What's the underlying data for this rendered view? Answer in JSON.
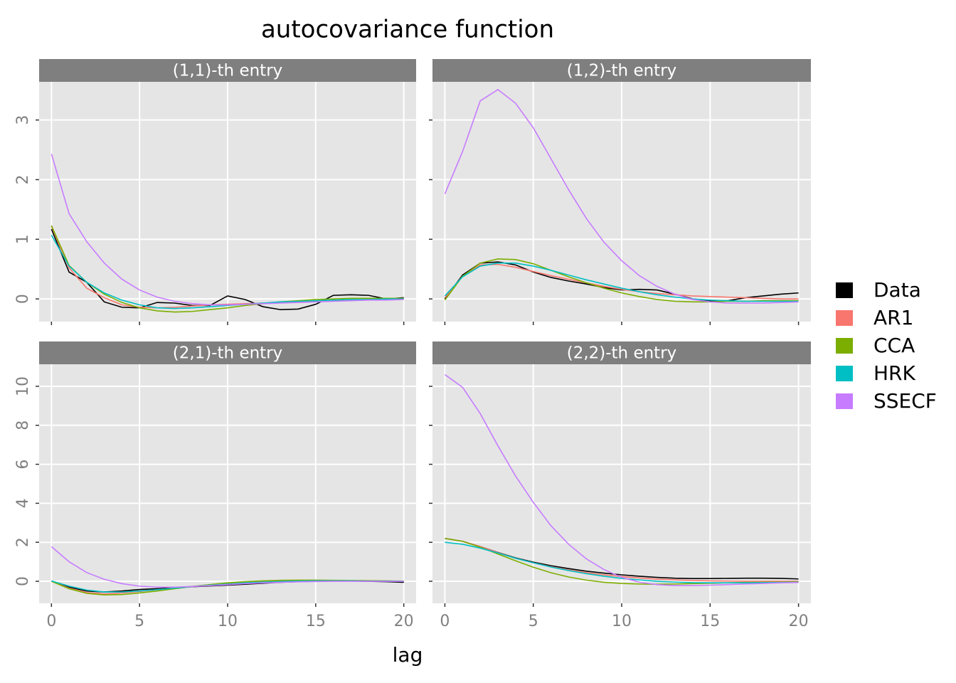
{
  "title": "autocovariance function",
  "x_label": "lag",
  "legend_position": "right",
  "grid": true,
  "chart_data": [
    {
      "type": "line",
      "title": "(1,1)-th entry",
      "x": [
        0,
        1,
        2,
        3,
        4,
        5,
        6,
        7,
        8,
        9,
        10,
        11,
        12,
        13,
        14,
        15,
        16,
        17,
        18,
        19,
        20
      ],
      "xlim": [
        -0.7,
        20.7
      ],
      "ylim": [
        -0.38,
        3.64
      ],
      "yticks": [
        0,
        1,
        2,
        3
      ],
      "series": [
        {
          "name": "Data",
          "color": "#000000",
          "values": [
            1.17,
            0.45,
            0.28,
            -0.05,
            -0.14,
            -0.15,
            -0.06,
            -0.07,
            -0.11,
            -0.11,
            0.05,
            -0.01,
            -0.13,
            -0.18,
            -0.17,
            -0.09,
            0.06,
            0.07,
            0.06,
            0.0,
            0.02
          ]
        },
        {
          "name": "AR1",
          "color": "#F8766D",
          "values": [
            1.22,
            0.52,
            0.18,
            0.02,
            -0.1,
            -0.14,
            -0.15,
            -0.14,
            -0.12,
            -0.1,
            -0.09,
            -0.08,
            -0.07,
            -0.06,
            -0.05,
            -0.04,
            -0.03,
            -0.02,
            -0.01,
            0.0,
            0.0
          ]
        },
        {
          "name": "CCA",
          "color": "#7CAE00",
          "values": [
            1.23,
            0.56,
            0.28,
            0.08,
            -0.06,
            -0.15,
            -0.2,
            -0.22,
            -0.21,
            -0.18,
            -0.15,
            -0.11,
            -0.08,
            -0.05,
            -0.03,
            -0.01,
            0.0,
            0.01,
            0.01,
            0.01,
            0.01
          ]
        },
        {
          "name": "HRK",
          "color": "#00BFC4",
          "values": [
            1.07,
            0.55,
            0.28,
            0.1,
            -0.02,
            -0.1,
            -0.15,
            -0.16,
            -0.15,
            -0.13,
            -0.11,
            -0.09,
            -0.07,
            -0.05,
            -0.04,
            -0.03,
            -0.02,
            -0.01,
            -0.01,
            0.0,
            0.0
          ]
        },
        {
          "name": "SSECF",
          "color": "#C77CFF",
          "values": [
            2.43,
            1.43,
            0.96,
            0.6,
            0.33,
            0.15,
            0.03,
            -0.04,
            -0.08,
            -0.1,
            -0.1,
            -0.09,
            -0.08,
            -0.07,
            -0.06,
            -0.05,
            -0.04,
            -0.03,
            -0.02,
            -0.02,
            -0.01
          ]
        }
      ]
    },
    {
      "type": "line",
      "title": "(1,2)-th entry",
      "x": [
        0,
        1,
        2,
        3,
        4,
        5,
        6,
        7,
        8,
        9,
        10,
        11,
        12,
        13,
        14,
        15,
        16,
        17,
        18,
        19,
        20
      ],
      "xlim": [
        -0.7,
        20.7
      ],
      "ylim": [
        -0.38,
        3.64
      ],
      "series": [
        {
          "name": "Data",
          "color": "#000000",
          "values": [
            0.0,
            0.4,
            0.6,
            0.62,
            0.57,
            0.45,
            0.36,
            0.3,
            0.25,
            0.19,
            0.15,
            0.16,
            0.15,
            0.08,
            0.0,
            -0.03,
            -0.03,
            0.02,
            0.05,
            0.08,
            0.1
          ]
        },
        {
          "name": "AR1",
          "color": "#F8766D",
          "values": [
            0.02,
            0.38,
            0.57,
            0.58,
            0.53,
            0.46,
            0.39,
            0.33,
            0.27,
            0.21,
            0.16,
            0.12,
            0.09,
            0.07,
            0.05,
            0.04,
            0.03,
            0.02,
            0.01,
            0.0,
            0.0
          ]
        },
        {
          "name": "CCA",
          "color": "#7CAE00",
          "values": [
            -0.02,
            0.38,
            0.6,
            0.67,
            0.66,
            0.59,
            0.48,
            0.37,
            0.27,
            0.18,
            0.1,
            0.04,
            -0.01,
            -0.04,
            -0.05,
            -0.05,
            -0.04,
            -0.04,
            -0.03,
            -0.03,
            -0.03
          ]
        },
        {
          "name": "HRK",
          "color": "#00BFC4",
          "values": [
            0.05,
            0.37,
            0.55,
            0.6,
            0.6,
            0.55,
            0.48,
            0.4,
            0.32,
            0.25,
            0.18,
            0.12,
            0.07,
            0.03,
            0.0,
            -0.02,
            -0.03,
            -0.04,
            -0.04,
            -0.04,
            -0.04
          ]
        },
        {
          "name": "SSECF",
          "color": "#C77CFF",
          "values": [
            1.76,
            2.47,
            3.32,
            3.51,
            3.28,
            2.87,
            2.35,
            1.83,
            1.35,
            0.95,
            0.64,
            0.39,
            0.21,
            0.08,
            -0.01,
            -0.05,
            -0.07,
            -0.07,
            -0.07,
            -0.06,
            -0.05
          ]
        }
      ]
    },
    {
      "type": "line",
      "title": "(2,1)-th entry",
      "x": [
        0,
        1,
        2,
        3,
        4,
        5,
        6,
        7,
        8,
        9,
        10,
        11,
        12,
        13,
        14,
        15,
        16,
        17,
        18,
        19,
        20
      ],
      "xlim": [
        -0.7,
        20.7
      ],
      "ylim": [
        -1.13,
        11.13
      ],
      "xticks": [
        0,
        5,
        10,
        15,
        20
      ],
      "yticks": [
        0,
        2,
        4,
        6,
        8,
        10
      ],
      "series": [
        {
          "name": "Data",
          "color": "#000000",
          "values": [
            0.0,
            -0.3,
            -0.5,
            -0.55,
            -0.5,
            -0.42,
            -0.38,
            -0.33,
            -0.28,
            -0.24,
            -0.2,
            -0.15,
            -0.1,
            -0.05,
            -0.02,
            0.0,
            0.01,
            0.01,
            0.0,
            -0.02,
            -0.05
          ]
        },
        {
          "name": "AR1",
          "color": "#F8766D",
          "values": [
            0.0,
            -0.35,
            -0.58,
            -0.65,
            -0.6,
            -0.52,
            -0.43,
            -0.34,
            -0.26,
            -0.18,
            -0.12,
            -0.07,
            -0.03,
            0.0,
            0.01,
            0.02,
            0.02,
            0.02,
            0.01,
            0.01,
            0.0
          ]
        },
        {
          "name": "CCA",
          "color": "#7CAE00",
          "values": [
            0.0,
            -0.38,
            -0.62,
            -0.7,
            -0.68,
            -0.6,
            -0.5,
            -0.38,
            -0.27,
            -0.17,
            -0.08,
            -0.02,
            0.02,
            0.05,
            0.06,
            0.06,
            0.05,
            0.04,
            0.03,
            0.02,
            0.01
          ]
        },
        {
          "name": "HRK",
          "color": "#00BFC4",
          "values": [
            0.02,
            -0.25,
            -0.45,
            -0.55,
            -0.55,
            -0.5,
            -0.43,
            -0.35,
            -0.27,
            -0.2,
            -0.14,
            -0.08,
            -0.04,
            -0.01,
            0.01,
            0.02,
            0.02,
            0.02,
            0.01,
            0.01,
            0.0
          ]
        },
        {
          "name": "SSECF",
          "color": "#C77CFF",
          "values": [
            1.78,
            1.0,
            0.45,
            0.1,
            -0.12,
            -0.25,
            -0.3,
            -0.3,
            -0.27,
            -0.22,
            -0.17,
            -0.12,
            -0.08,
            -0.05,
            -0.03,
            -0.01,
            0.0,
            0.0,
            0.0,
            0.0,
            0.0
          ]
        }
      ]
    },
    {
      "type": "line",
      "title": "(2,2)-th entry",
      "x": [
        0,
        1,
        2,
        3,
        4,
        5,
        6,
        7,
        8,
        9,
        10,
        11,
        12,
        13,
        14,
        15,
        16,
        17,
        18,
        19,
        20
      ],
      "xlim": [
        -0.7,
        20.7
      ],
      "ylim": [
        -1.13,
        11.13
      ],
      "xticks": [
        0,
        5,
        10,
        15,
        20
      ],
      "series": [
        {
          "name": "Data",
          "color": "#000000",
          "values": [
            2.2,
            2.05,
            1.78,
            1.48,
            1.2,
            0.98,
            0.8,
            0.65,
            0.52,
            0.42,
            0.33,
            0.26,
            0.2,
            0.16,
            0.14,
            0.14,
            0.15,
            0.16,
            0.16,
            0.15,
            0.12
          ]
        },
        {
          "name": "AR1",
          "color": "#F8766D",
          "values": [
            2.2,
            2.05,
            1.78,
            1.47,
            1.18,
            0.95,
            0.75,
            0.58,
            0.44,
            0.33,
            0.24,
            0.17,
            0.11,
            0.07,
            0.04,
            0.02,
            0.01,
            0.0,
            0.0,
            0.0,
            0.0
          ]
        },
        {
          "name": "CCA",
          "color": "#7CAE00",
          "values": [
            2.2,
            2.05,
            1.75,
            1.4,
            1.05,
            0.72,
            0.44,
            0.22,
            0.06,
            -0.05,
            -0.11,
            -0.14,
            -0.15,
            -0.14,
            -0.12,
            -0.1,
            -0.08,
            -0.06,
            -0.05,
            -0.04,
            -0.03
          ]
        },
        {
          "name": "HRK",
          "color": "#00BFC4",
          "values": [
            2.0,
            1.9,
            1.7,
            1.45,
            1.18,
            0.95,
            0.73,
            0.55,
            0.39,
            0.26,
            0.15,
            0.07,
            0.0,
            -0.04,
            -0.07,
            -0.08,
            -0.08,
            -0.08,
            -0.07,
            -0.06,
            -0.05
          ]
        },
        {
          "name": "SSECF",
          "color": "#C77CFF",
          "values": [
            10.6,
            9.95,
            8.6,
            6.95,
            5.4,
            4.05,
            2.85,
            1.9,
            1.15,
            0.6,
            0.2,
            -0.05,
            -0.17,
            -0.22,
            -0.22,
            -0.2,
            -0.17,
            -0.14,
            -0.11,
            -0.08,
            -0.06
          ]
        }
      ]
    }
  ]
}
